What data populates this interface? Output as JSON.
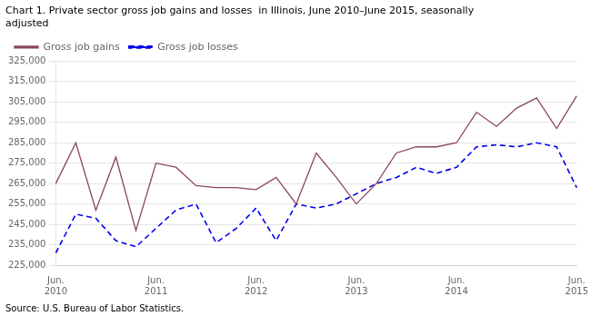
{
  "chart_data": {
    "type": "line",
    "title": "Chart 1. Private sector gross job gains and losses  in Illinois, June 2010–June 2015, seasonally\nadjusted",
    "annotations": [
      "Source: U.S. Bureau of Labor Statistics."
    ],
    "categories": [
      "Jun.\n2010",
      null,
      null,
      null,
      null,
      "Jun.\n2011",
      null,
      null,
      null,
      null,
      "Jun.\n2012",
      null,
      null,
      null,
      null,
      "Jun.\n2013",
      null,
      null,
      null,
      null,
      "Jun.\n2014",
      null,
      null,
      null,
      null,
      null,
      "Jun.\n2015"
    ],
    "series": [
      {
        "name": "Gross job gains",
        "color": "#8b4563",
        "line_style": "solid",
        "values": [
          265000,
          285000,
          252000,
          278000,
          242000,
          275000,
          273000,
          264000,
          263000,
          263000,
          262000,
          268000,
          255000,
          280000,
          268000,
          255000,
          265000,
          280000,
          283000,
          283000,
          285000,
          300000,
          293000,
          302000,
          307000,
          292000,
          308000
        ]
      },
      {
        "name": "Gross job losses",
        "color": "#0000ee",
        "line_style": "dashed",
        "values": [
          231000,
          250000,
          248000,
          237000,
          234000,
          243000,
          252000,
          255000,
          236000,
          243000,
          253000,
          237000,
          255000,
          253000,
          255000,
          260000,
          265000,
          268000,
          273000,
          270000,
          273000,
          283000,
          284000,
          283000,
          285000,
          283000,
          263000
        ]
      }
    ],
    "ylim": [
      225000,
      325000
    ],
    "yticks": [
      {
        "value": 225000,
        "label": "225,000"
      },
      {
        "value": 235000,
        "label": "235,000"
      },
      {
        "value": 245000,
        "label": "245,000"
      },
      {
        "value": 255000,
        "label": "255,000"
      },
      {
        "value": 265000,
        "label": "265,000"
      },
      {
        "value": 275000,
        "label": "275,000"
      },
      {
        "value": 285000,
        "label": "285,000"
      },
      {
        "value": 295000,
        "label": "295,000"
      },
      {
        "value": 305000,
        "label": "305,000"
      },
      {
        "value": 315000,
        "label": "315,000"
      },
      {
        "value": 325000,
        "label": "325,000"
      }
    ],
    "grid": true,
    "legend": "upper left"
  }
}
